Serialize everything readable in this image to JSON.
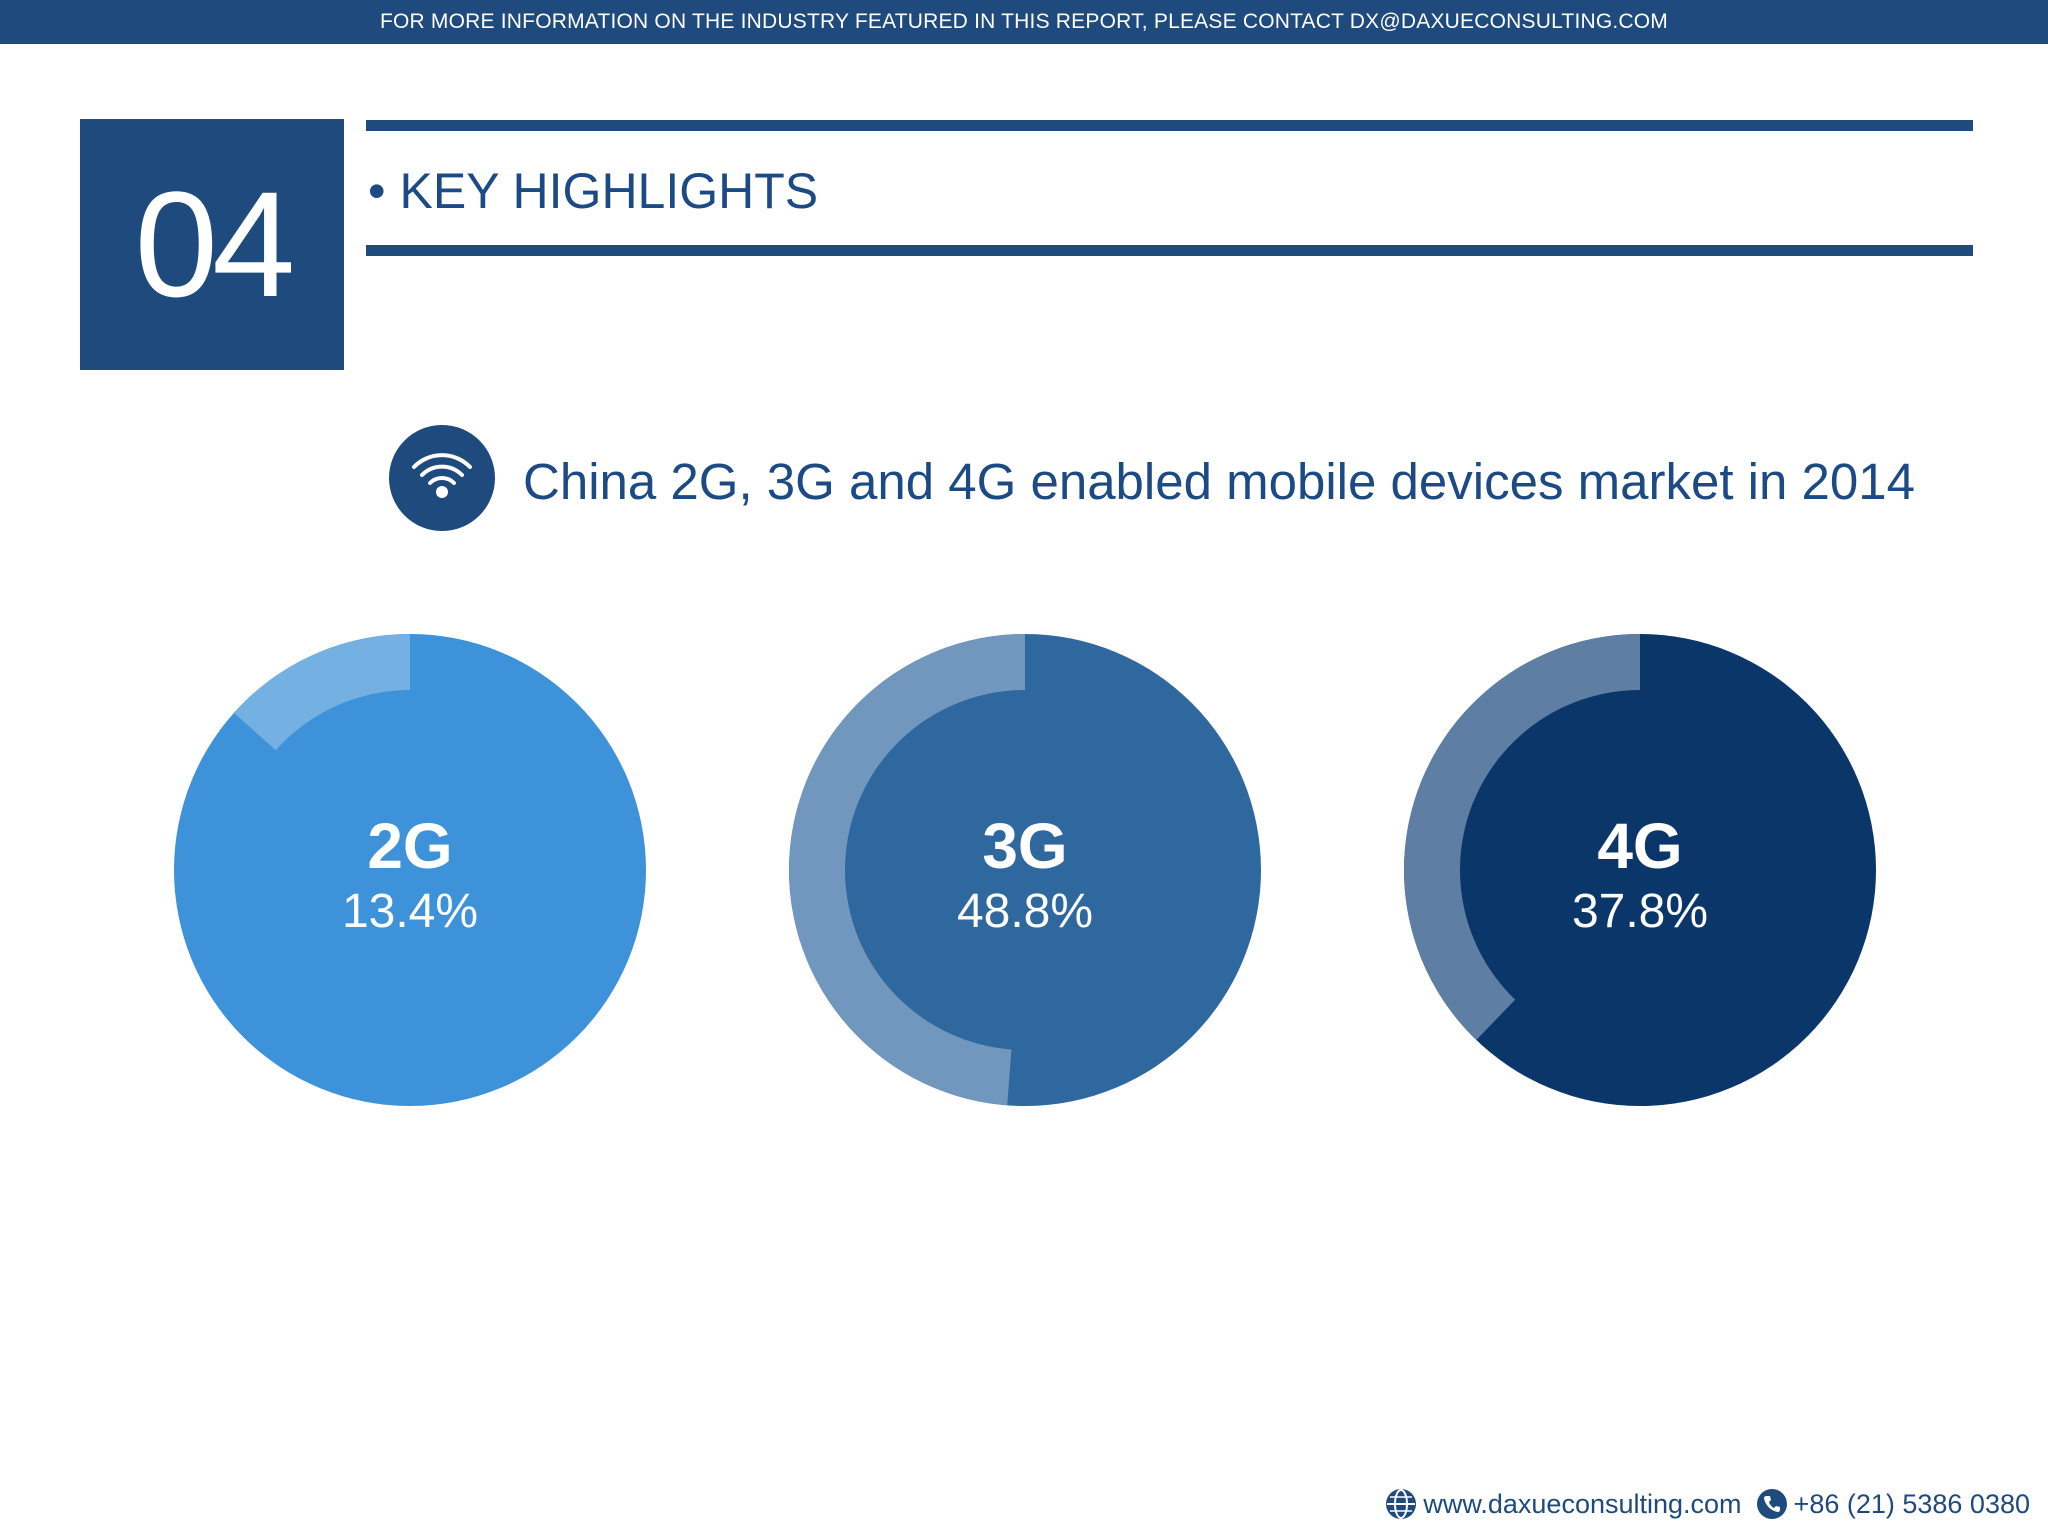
{
  "banner": {
    "text": "FOR MORE INFORMATION ON THE INDUSTRY FEATURED IN THIS REPORT, PLEASE CONTACT DX@DAXUECONSULTING.COM"
  },
  "section": {
    "number": "04",
    "bullet": "•",
    "title": "KEY HIGHLIGHTS"
  },
  "chart_title": "China 2G, 3G and 4G enabled mobile devices market in 2014",
  "chart_data": {
    "type": "pie",
    "title": "China 2G, 3G and 4G enabled mobile devices market in 2014",
    "categories": [
      "2G",
      "3G",
      "4G"
    ],
    "values": [
      13.4,
      48.8,
      37.8
    ],
    "labels": [
      "13.4%",
      "48.8%",
      "37.8%"
    ],
    "unit": "%"
  },
  "colors": {
    "brand": "#1f4a7d",
    "title": "#1b4a85",
    "2G": {
      "main": "#3e92d9",
      "light": "#74b0e2"
    },
    "3G": {
      "main": "#2f679f",
      "light": "#7297bf"
    },
    "4G": {
      "main": "#0b366a",
      "light": "#5f7ea3"
    }
  },
  "footer": {
    "website": "www.daxueconsulting.com",
    "phone": "+86 (21) 5386 0380",
    "website_icon": "globe-icon",
    "phone_icon": "phone-icon"
  }
}
